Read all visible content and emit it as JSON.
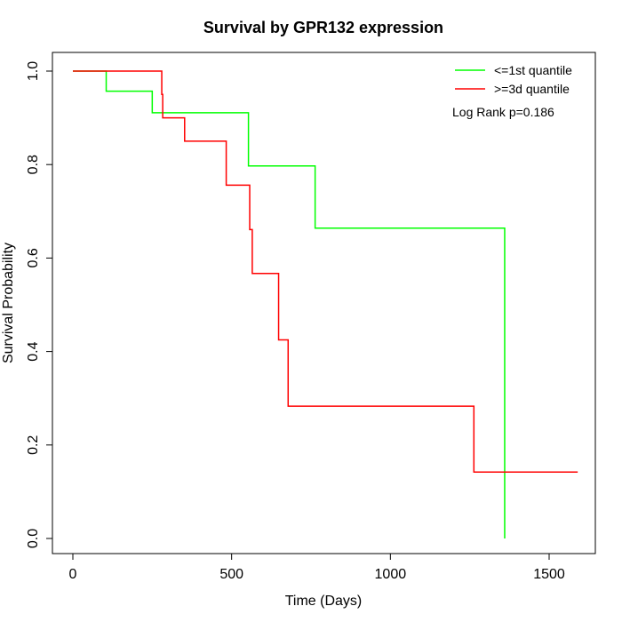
{
  "chart_data": {
    "type": "line",
    "title": "Survival by GPR132 expression",
    "xlabel": "Time (Days)",
    "ylabel": "Survival Probability",
    "xlim": [
      0,
      1600
    ],
    "ylim": [
      0,
      1.0
    ],
    "xticks": [
      0,
      500,
      1000,
      1500
    ],
    "yticks": [
      0.0,
      0.2,
      0.4,
      0.6,
      0.8,
      1.0
    ],
    "xtick_labels": [
      "0",
      "500",
      "1000",
      "1500"
    ],
    "ytick_labels": [
      "0.0",
      "0.2",
      "0.4",
      "0.6",
      "0.8",
      "1.0"
    ],
    "grid": false,
    "legend_position": "top-right",
    "annotation": "Log Rank p=0.186",
    "series": [
      {
        "name": "<=1st quantile",
        "color": "#00ff00",
        "step": true,
        "x": [
          0,
          105,
          250,
          553,
          763,
          1360,
          1360
        ],
        "y": [
          1.0,
          0.957,
          0.911,
          0.797,
          0.664,
          0.664,
          0.0
        ]
      },
      {
        "name": ">=3d quantile",
        "color": "#ff0000",
        "step": true,
        "x": [
          0,
          280,
          283,
          352,
          483,
          557,
          565,
          648,
          678,
          1263,
          1590
        ],
        "y": [
          1.0,
          0.95,
          0.9,
          0.85,
          0.756,
          0.661,
          0.567,
          0.425,
          0.283,
          0.142,
          0.142
        ]
      }
    ]
  }
}
